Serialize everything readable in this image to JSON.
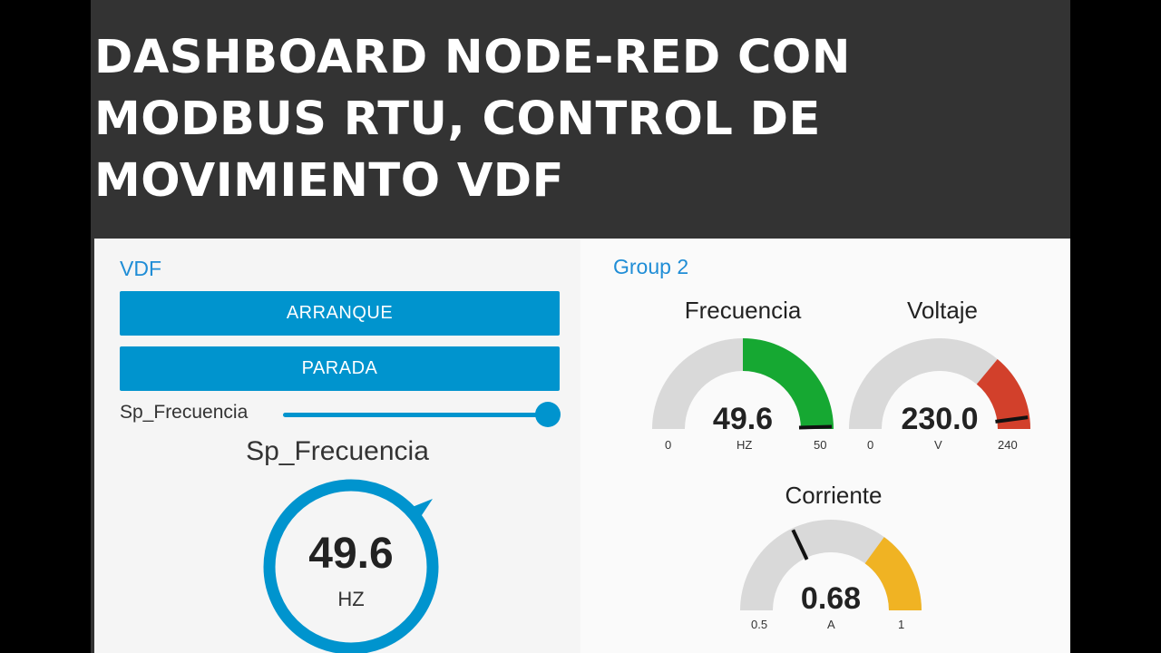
{
  "title": {
    "lines": [
      "DASHBOARD NODE-RED CON",
      "MODBUS RTU, CONTROL DE",
      "MOVIMIENTO VDF"
    ]
  },
  "left_group": {
    "title": "VDF",
    "start_button": "ARRANQUE",
    "stop_button": "PARADA",
    "slider": {
      "label": "Sp_Frecuencia",
      "value_fraction": 1.0
    },
    "knob": {
      "title": "Sp_Frecuencia",
      "value": "49.6",
      "unit": "HZ",
      "fraction": 0.99
    }
  },
  "right_group": {
    "title": "Group 2",
    "gauges": [
      {
        "title": "Frecuencia",
        "value": "49.6",
        "unit": "HZ",
        "min": "0",
        "max": "50",
        "fraction": 0.992,
        "color": "#16a832",
        "level_start": 0.5
      },
      {
        "title": "Voltaje",
        "value": "230.0",
        "unit": "V",
        "min": "0",
        "max": "240",
        "fraction": 0.958,
        "color": "#d2402b",
        "level_start": 0.72
      },
      {
        "title": "Corriente",
        "value": "0.68",
        "unit": "A",
        "min": "0.5",
        "max": "1",
        "fraction": 0.36,
        "color": "#f0b323",
        "level_start": 0.7
      }
    ]
  },
  "colors": {
    "accent": "#0094ce",
    "group_title": "#1f8dd6",
    "gauge_track": "#d9d9d9"
  }
}
